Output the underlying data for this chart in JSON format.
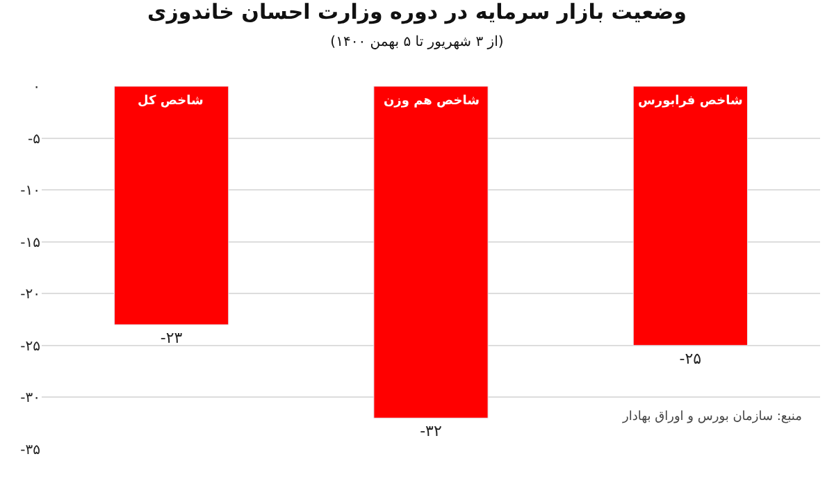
{
  "chart_data": {
    "type": "bar",
    "title": "وضعیت بازار سرمایه در دوره وزارت احسان خاندوزی",
    "subtitle": "(از ۳ شهریور تا ۵ بهمن ۱۴۰۰)",
    "categories": [
      "شاخص کل",
      "شاخص هم وزن",
      "شاخص فرابورس"
    ],
    "values": [
      -23,
      -32,
      -25
    ],
    "color": "#ff0000",
    "value_labels": [
      "-۲۳",
      "-۳۲",
      "-۲۵"
    ],
    "ylim": [
      -35,
      0
    ],
    "yticks": [
      {
        "value": 0,
        "label": "۰"
      },
      {
        "value": -5,
        "label": "-۵"
      },
      {
        "value": -10,
        "label": "-۱۰"
      },
      {
        "value": -15,
        "label": "-۱۵"
      },
      {
        "value": -20,
        "label": "-۲۰"
      },
      {
        "value": -25,
        "label": "-۲۵"
      },
      {
        "value": -30,
        "label": "-۳۰"
      },
      {
        "value": -35,
        "label": "-۳۵"
      }
    ],
    "grid": "y",
    "tick_labels": "y",
    "annotations": [
      "منبع: سازمان بورس و اوراق بهادار"
    ]
  }
}
